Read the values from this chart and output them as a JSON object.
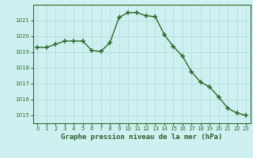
{
  "x": [
    0,
    1,
    2,
    3,
    4,
    5,
    6,
    7,
    8,
    9,
    10,
    11,
    12,
    13,
    14,
    15,
    16,
    17,
    18,
    19,
    20,
    21,
    22,
    23
  ],
  "y": [
    1019.3,
    1019.3,
    1019.5,
    1019.7,
    1019.7,
    1019.7,
    1019.1,
    1019.05,
    1019.6,
    1021.2,
    1021.5,
    1021.5,
    1021.3,
    1021.25,
    1020.1,
    1019.35,
    1018.75,
    1017.75,
    1017.1,
    1016.8,
    1016.15,
    1015.45,
    1015.15,
    1015.0
  ],
  "line_color": "#2d6a2d",
  "marker_color": "#2d6a2d",
  "bg_color": "#cff0f0",
  "grid_color": "#aed8d8",
  "xlabel": "Graphe pression niveau de la mer (hPa)",
  "xlabel_color": "#2d5f2d",
  "ylim_min": 1014.5,
  "ylim_max": 1022.0,
  "yticks": [
    1015,
    1016,
    1017,
    1018,
    1019,
    1020,
    1021
  ],
  "xtick_labels": [
    "0",
    "1",
    "2",
    "3",
    "4",
    "5",
    "6",
    "7",
    "8",
    "9",
    "10",
    "11",
    "12",
    "13",
    "14",
    "15",
    "16",
    "17",
    "18",
    "19",
    "20",
    "21",
    "22",
    "23"
  ],
  "tick_color": "#2d6a2d",
  "spine_color": "#2d6a2d",
  "tick_fontsize": 5.0,
  "xlabel_fontsize": 6.5,
  "line_width": 1.0,
  "marker_size": 4.5
}
